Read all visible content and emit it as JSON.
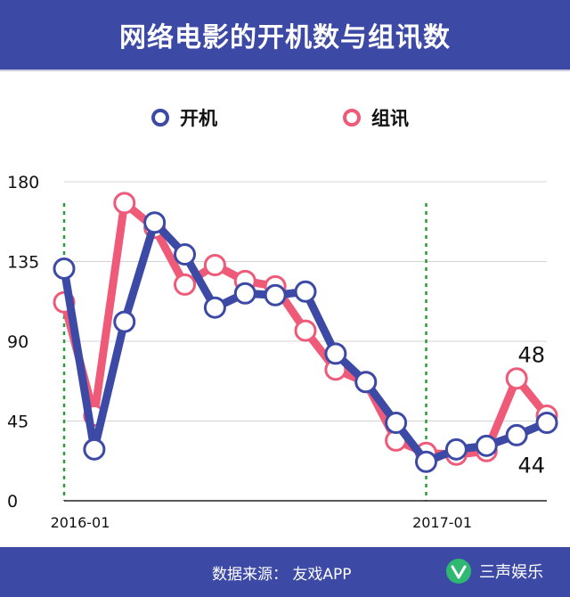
{
  "header": {
    "title": "网络电影的开机数与组讯数"
  },
  "footer": {
    "source": "数据来源：  友戏APP",
    "brand": "三声娱乐"
  },
  "colors": {
    "header_bg": "#3c4aa6",
    "kaiji": "#3c4aa6",
    "zuxun": "#ee5a78",
    "divider": "#2a9a3a"
  },
  "chart_data": {
    "type": "line",
    "title": "网络电影的开机数与组讯数",
    "xlabel": "",
    "ylabel": "",
    "x": [
      "2016-01",
      "2016-02",
      "2016-03",
      "2016-04",
      "2016-05",
      "2016-06",
      "2016-07",
      "2016-08",
      "2016-09",
      "2016-10",
      "2016-11",
      "2016-12",
      "2017-01",
      "2017-02",
      "2017-03",
      "2017-04",
      "2017-05"
    ],
    "x_tick_labels": [
      "2016-01",
      "2017-01"
    ],
    "yticks": [
      0,
      45,
      90,
      135,
      180
    ],
    "ylim": [
      0,
      180
    ],
    "grid": true,
    "legend": "top-center",
    "series": [
      {
        "name": "开机",
        "color": "#3c4aa6",
        "values": [
          131,
          29,
          101,
          157,
          139,
          109,
          117,
          116,
          118,
          83,
          67,
          44,
          22,
          29,
          31,
          37,
          44
        ]
      },
      {
        "name": "组讯",
        "color": "#ee5a78",
        "values": [
          112,
          48,
          168,
          154,
          122,
          133,
          124,
          121,
          96,
          74,
          67,
          34,
          27,
          26,
          28,
          69,
          48
        ]
      }
    ],
    "annotations": [
      {
        "text": "48",
        "series": "组讯",
        "index": 16
      },
      {
        "text": "44",
        "series": "开机",
        "index": 16
      }
    ],
    "vlines": [
      "2016-01",
      "2017-01"
    ]
  }
}
